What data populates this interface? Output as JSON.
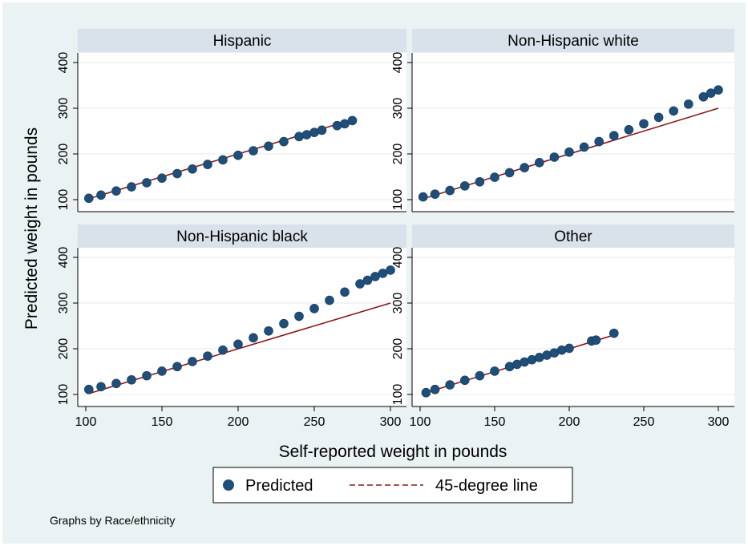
{
  "chart_data": {
    "type": "scatter",
    "by_variable_note": "Graphs by Race/ethnicity",
    "xlabel": "Self-reported weight in pounds",
    "ylabel": "Predicted weight in pounds",
    "xlim": [
      100,
      300
    ],
    "ylim": [
      100,
      400
    ],
    "x_ticks": [
      100,
      150,
      200,
      250,
      300
    ],
    "y_ticks": [
      100,
      200,
      300,
      400
    ],
    "colors": {
      "predicted": "#1f4e79",
      "reference_line": "#8b1a1a",
      "panel_header": "#d9e2ea",
      "outer_background": "#eaf2f3"
    },
    "legend": {
      "position": "bottom",
      "entries": [
        {
          "label": "Predicted",
          "marker": "circle"
        },
        {
          "label": "45-degree line",
          "marker": "dashed-line"
        }
      ]
    },
    "panels": [
      {
        "title": "Hispanic",
        "predicted": [
          [
            102,
            103
          ],
          [
            110,
            110
          ],
          [
            120,
            119
          ],
          [
            130,
            128
          ],
          [
            140,
            137
          ],
          [
            150,
            147
          ],
          [
            160,
            157
          ],
          [
            170,
            167
          ],
          [
            180,
            177
          ],
          [
            190,
            187
          ],
          [
            200,
            197
          ],
          [
            210,
            207
          ],
          [
            220,
            217
          ],
          [
            230,
            227
          ],
          [
            240,
            238
          ],
          [
            245,
            242
          ],
          [
            250,
            247
          ],
          [
            255,
            252
          ],
          [
            265,
            262
          ],
          [
            270,
            266
          ],
          [
            275,
            273
          ]
        ],
        "reference_line": [
          [
            102,
            102
          ],
          [
            275,
            275
          ]
        ]
      },
      {
        "title": "Non-Hispanic white",
        "predicted": [
          [
            102,
            106
          ],
          [
            110,
            112
          ],
          [
            120,
            120
          ],
          [
            130,
            130
          ],
          [
            140,
            139
          ],
          [
            150,
            149
          ],
          [
            160,
            159
          ],
          [
            170,
            170
          ],
          [
            180,
            181
          ],
          [
            190,
            193
          ],
          [
            200,
            204
          ],
          [
            210,
            215
          ],
          [
            220,
            227
          ],
          [
            230,
            240
          ],
          [
            240,
            253
          ],
          [
            250,
            266
          ],
          [
            260,
            280
          ],
          [
            270,
            294
          ],
          [
            280,
            309
          ],
          [
            290,
            325
          ],
          [
            295,
            333
          ],
          [
            300,
            340
          ]
        ],
        "reference_line": [
          [
            102,
            102
          ],
          [
            300,
            300
          ]
        ]
      },
      {
        "title": "Non-Hispanic black",
        "predicted": [
          [
            102,
            111
          ],
          [
            110,
            117
          ],
          [
            120,
            124
          ],
          [
            130,
            132
          ],
          [
            140,
            141
          ],
          [
            150,
            151
          ],
          [
            160,
            161
          ],
          [
            170,
            172
          ],
          [
            180,
            184
          ],
          [
            190,
            197
          ],
          [
            200,
            210
          ],
          [
            210,
            224
          ],
          [
            220,
            239
          ],
          [
            230,
            255
          ],
          [
            240,
            271
          ],
          [
            250,
            288
          ],
          [
            260,
            306
          ],
          [
            270,
            324
          ],
          [
            280,
            342
          ],
          [
            285,
            350
          ],
          [
            290,
            358
          ],
          [
            295,
            365
          ],
          [
            300,
            372
          ]
        ],
        "reference_line": [
          [
            102,
            102
          ],
          [
            300,
            300
          ]
        ]
      },
      {
        "title": "Other",
        "predicted": [
          [
            104,
            104
          ],
          [
            110,
            111
          ],
          [
            120,
            121
          ],
          [
            130,
            131
          ],
          [
            140,
            141
          ],
          [
            150,
            151
          ],
          [
            160,
            161
          ],
          [
            165,
            166
          ],
          [
            170,
            171
          ],
          [
            175,
            176
          ],
          [
            180,
            181
          ],
          [
            185,
            186
          ],
          [
            190,
            191
          ],
          [
            195,
            197
          ],
          [
            200,
            201
          ],
          [
            215,
            217
          ],
          [
            218,
            219
          ],
          [
            230,
            234
          ]
        ],
        "reference_line": [
          [
            104,
            104
          ],
          [
            230,
            230
          ]
        ]
      }
    ]
  }
}
